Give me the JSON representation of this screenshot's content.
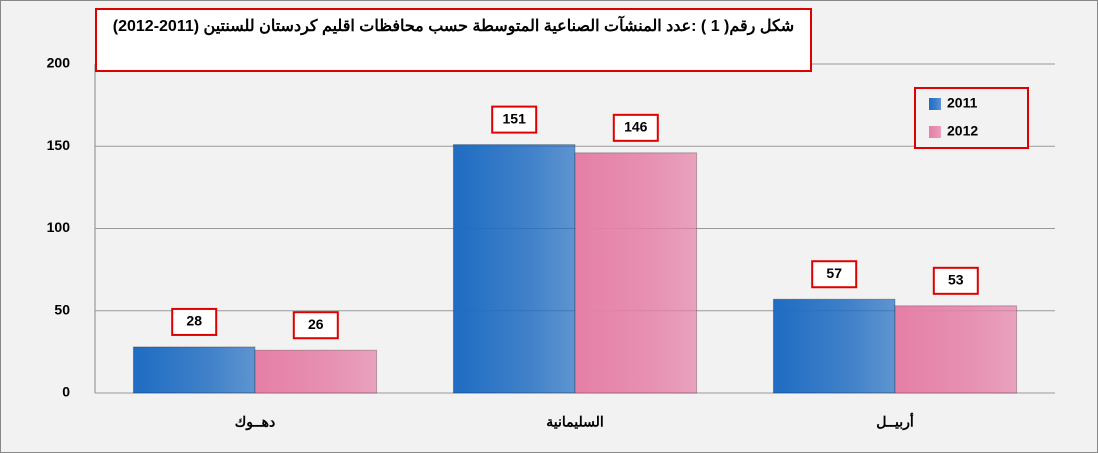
{
  "chart_data": {
    "type": "bar",
    "title": "شكل رقم( 1 ) :عدد المنشآت الصناعية المتوسطة حسب محافظات اقليم كردستان للسنتين (2011-2012)",
    "categories": [
      "دهــوك",
      "السليمانية",
      "أربيــل"
    ],
    "series": [
      {
        "name": "2011",
        "color": "#1f6cc2",
        "values": [
          28,
          151,
          57
        ]
      },
      {
        "name": "2012",
        "color": "#e57fa6",
        "values": [
          26,
          146,
          53
        ]
      }
    ],
    "ylim": [
      0,
      200
    ],
    "yticks": [
      0,
      50,
      100,
      150,
      200
    ],
    "grid": true,
    "legend": "top-right"
  }
}
